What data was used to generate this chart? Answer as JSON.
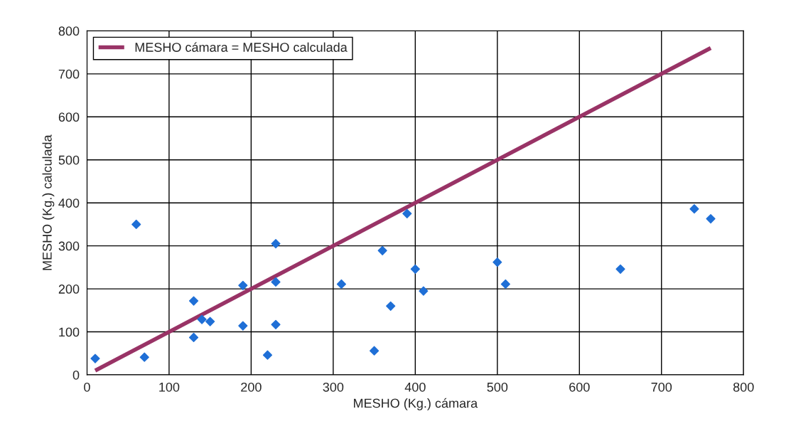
{
  "chart_data": {
    "type": "scatter",
    "xlabel": "MESHO (Kg.) cámara",
    "ylabel": "MESHO (Kg.) calculada",
    "xlim": [
      0,
      800
    ],
    "ylim": [
      0,
      800
    ],
    "xticks": [
      0,
      100,
      200,
      300,
      400,
      500,
      600,
      700,
      800
    ],
    "yticks": [
      0,
      100,
      200,
      300,
      400,
      500,
      600,
      700,
      800
    ],
    "grid": true,
    "legend": "top left",
    "marker": "diamond",
    "series": [
      {
        "color": "#1f6fd6",
        "x": [
          10,
          60,
          70,
          130,
          130,
          140,
          150,
          190,
          190,
          220,
          230,
          230,
          230,
          310,
          350,
          360,
          370,
          390,
          400,
          410,
          500,
          510,
          650,
          740,
          760
        ],
        "values": [
          38,
          350,
          41,
          172,
          87,
          129,
          124,
          208,
          114,
          46,
          305,
          216,
          117,
          211,
          56,
          289,
          160,
          375,
          246,
          195,
          262,
          211,
          246,
          386,
          363
        ]
      },
      {
        "type": "line",
        "name": "MESHO cámara = MESHO calculada",
        "color": "#993366",
        "marker": "none",
        "x": [
          10,
          760
        ],
        "values": [
          10,
          760
        ]
      }
    ]
  }
}
